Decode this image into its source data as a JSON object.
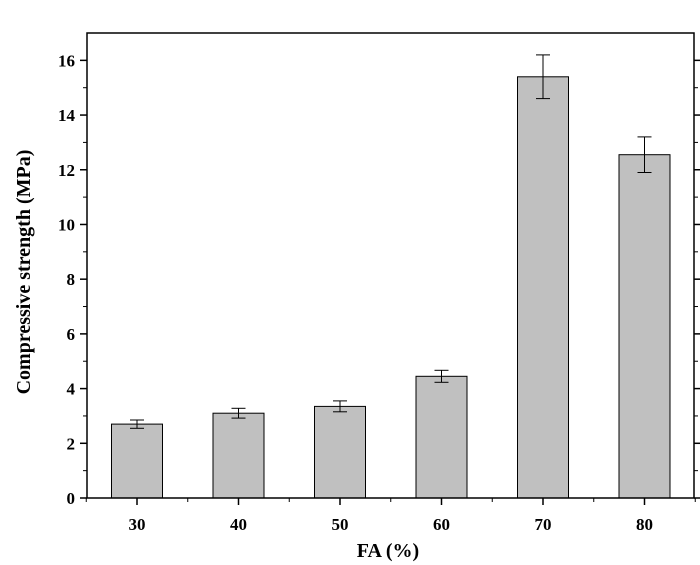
{
  "chart_data": {
    "type": "bar",
    "xlabel": "FA (%)",
    "ylabel": "Compressive strength (MPa)",
    "categories": [
      "30",
      "40",
      "50",
      "60",
      "70",
      "80"
    ],
    "values": [
      2.7,
      3.1,
      3.35,
      4.45,
      15.4,
      12.55
    ],
    "error": [
      0.15,
      0.18,
      0.2,
      0.22,
      0.8,
      0.65
    ],
    "ylim": [
      0,
      17
    ],
    "yticks": [
      "0",
      "2",
      "4",
      "6",
      "8",
      "10",
      "12",
      "14",
      "16"
    ],
    "grid": false,
    "legend": "none",
    "colors": {
      "bar_fill": "#c0c0c0",
      "bar_stroke": "#000000",
      "axis": "#000000"
    }
  }
}
